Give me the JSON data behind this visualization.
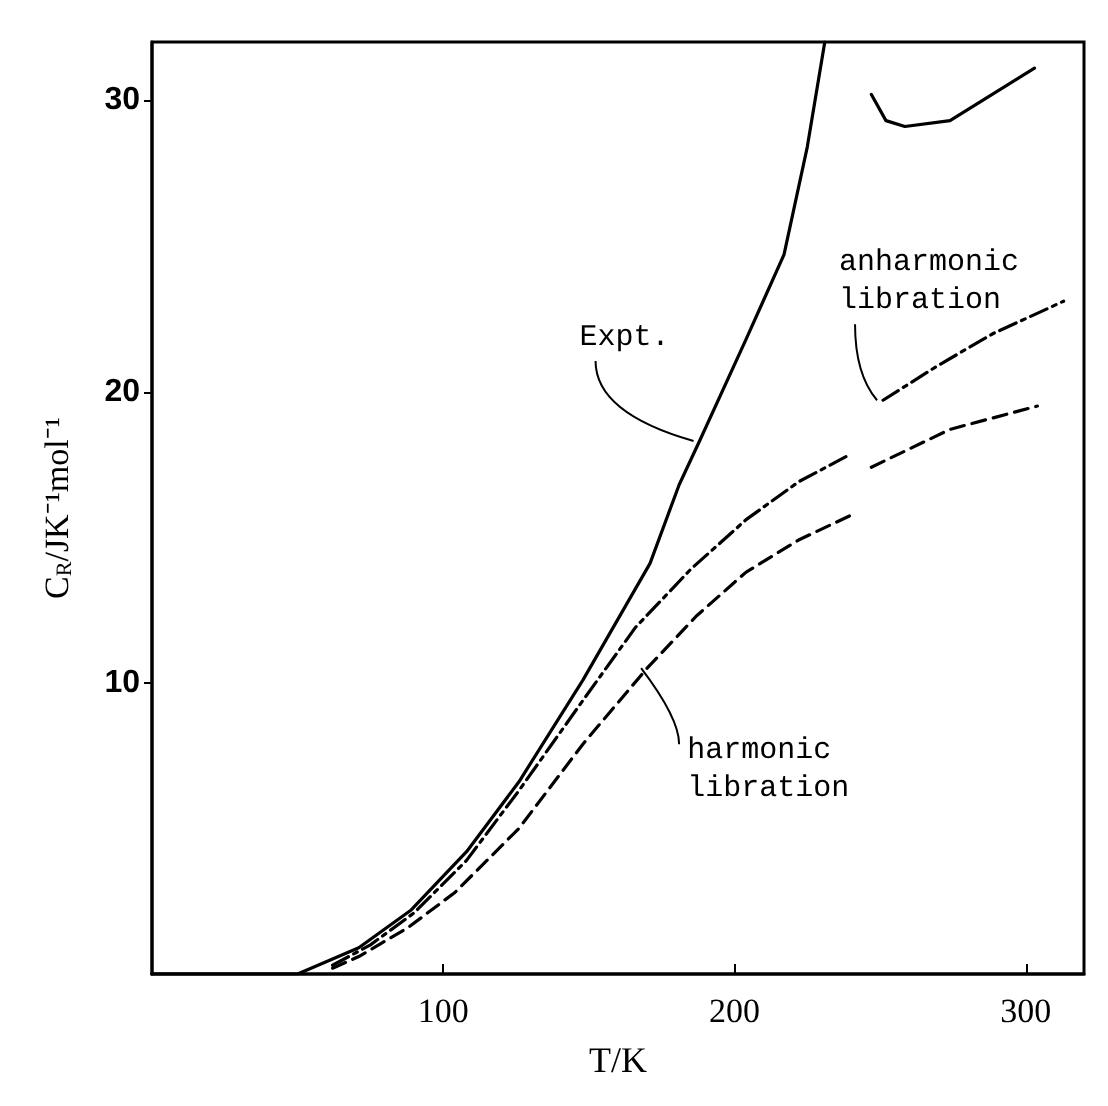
{
  "chart_data": {
    "type": "line",
    "xlabel": "T/K",
    "ylabel": "C$_{R}$/JK⁻¹mol⁻¹",
    "xlim": [
      0,
      320
    ],
    "xticks": [
      100,
      200,
      300
    ],
    "ylim": [
      0,
      32
    ],
    "yticks": [
      10,
      20,
      30
    ],
    "grid": false,
    "marker": "none",
    "series": [
      {
        "color": "#000000",
        "line_style": "solid",
        "x": [
          0,
          50,
          71,
          89,
          108,
          126,
          148,
          171,
          181,
          188,
          204,
          217,
          225,
          231,
          240,
          247,
          252,
          258.5,
          274,
          303
        ],
        "values": [
          0,
          0,
          0.9,
          2.2,
          4.2,
          6.6,
          10.1,
          14.1,
          16.8,
          18.3,
          21.8,
          24.7,
          28.4,
          32,
          null,
          30.2,
          29.3,
          29.1,
          29.3,
          31.1
        ]
      },
      {
        "color": "#000000",
        "line_style": "dashdot",
        "x": [
          62,
          75,
          90,
          108,
          126,
          148,
          166,
          185,
          204,
          222,
          239,
          245,
          251,
          270,
          289,
          313
        ],
        "values": [
          0.3,
          1.0,
          2.1,
          3.9,
          6.3,
          9.4,
          11.9,
          13.9,
          15.6,
          16.9,
          17.8,
          null,
          19.7,
          20.9,
          22.0,
          23.1
        ]
      },
      {
        "color": "#000000",
        "line_style": "dashed",
        "x": [
          62,
          71,
          88,
          104,
          126,
          148,
          170,
          187,
          204,
          222,
          241,
          244,
          247,
          274,
          304
        ],
        "values": [
          0.2,
          0.6,
          1.6,
          2.8,
          5.0,
          7.9,
          10.5,
          12.3,
          13.8,
          14.9,
          15.8,
          null,
          17.4,
          18.7,
          19.5
        ]
      }
    ],
    "annotations": [
      {
        "text": "Expt.",
        "x": 188,
        "y": 18.3
      },
      {
        "text": "anharmonic\nlibration",
        "x": 251,
        "y": 19.7
      },
      {
        "text": "harmonic\nlibration",
        "x": 170,
        "y": 10.5
      }
    ]
  }
}
